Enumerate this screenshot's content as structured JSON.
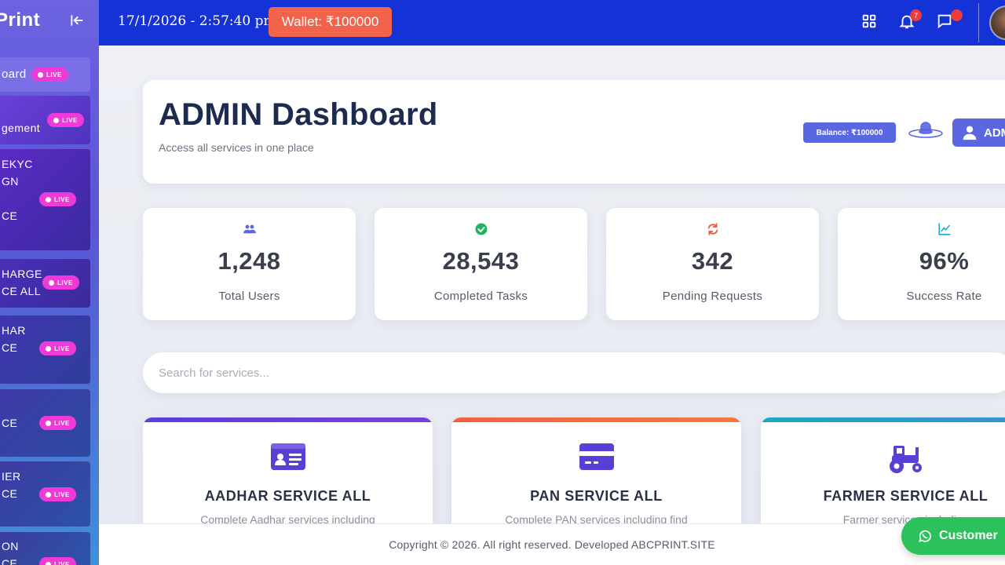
{
  "sidebar": {
    "brand": "Print",
    "live_label": "LIVE",
    "items": [
      {
        "label": "oard",
        "bg": "#7b6fe8"
      },
      {
        "label": "gement",
        "bg": "#6a3fd6"
      },
      {
        "label": "EKYC\nGN\n\nCE",
        "bg": "#5a2bc4"
      },
      {
        "label": "HARGE\nCE ALL",
        "bg": "#4a2fb8"
      },
      {
        "label": "HAR\nCE",
        "bg": "#3f36b0"
      },
      {
        "label": "CE",
        "bg": "#3e3aa8"
      },
      {
        "label": "IER\nCE",
        "bg": "#3c3ba2"
      },
      {
        "label": "ON\nCE",
        "bg": "#3a3c9c"
      }
    ]
  },
  "topbar": {
    "datetime": "17/1/2026 - 2:57:40 pm",
    "wallet": "Wallet: ₹100000",
    "notification_count": "7",
    "icons": [
      "grid-icon",
      "bell-icon",
      "chat-icon"
    ]
  },
  "header": {
    "title": "ADMIN Dashboard",
    "subtitle": "Access all services in one place",
    "balance": "Balance: ₹100000",
    "admin_label": "ADMIN"
  },
  "stats": [
    {
      "value": "1,248",
      "label": "Total Users",
      "icon": "users-icon",
      "color": "#5a67e0"
    },
    {
      "value": "28,543",
      "label": "Completed Tasks",
      "icon": "check-circle-icon",
      "color": "#22b35e"
    },
    {
      "value": "342",
      "label": "Pending Requests",
      "icon": "sync-icon",
      "color": "#f0623f"
    },
    {
      "value": "96%",
      "label": "Success Rate",
      "icon": "chart-line-icon",
      "color": "#21a9d6"
    }
  ],
  "search": {
    "placeholder": "Search for services..."
  },
  "services": [
    {
      "title": "AADHAR SERVICE ALL",
      "desc": "Complete Aadhar services including",
      "icon": "id-card-icon",
      "accent": "#6a3fd6"
    },
    {
      "title": "PAN SERVICE ALL",
      "desc": "Complete PAN services including find",
      "icon": "credit-card-icon",
      "accent": "#f0623f"
    },
    {
      "title": "FARMER SERVICE ALL",
      "desc": "Farmer services including",
      "icon": "tractor-icon",
      "accent": "#21a9d6"
    }
  ],
  "footer": {
    "copyright": "Copyright © 2026. All right reserved. Developed ABCPRINT.SITE"
  },
  "support": {
    "label": "Customer"
  }
}
